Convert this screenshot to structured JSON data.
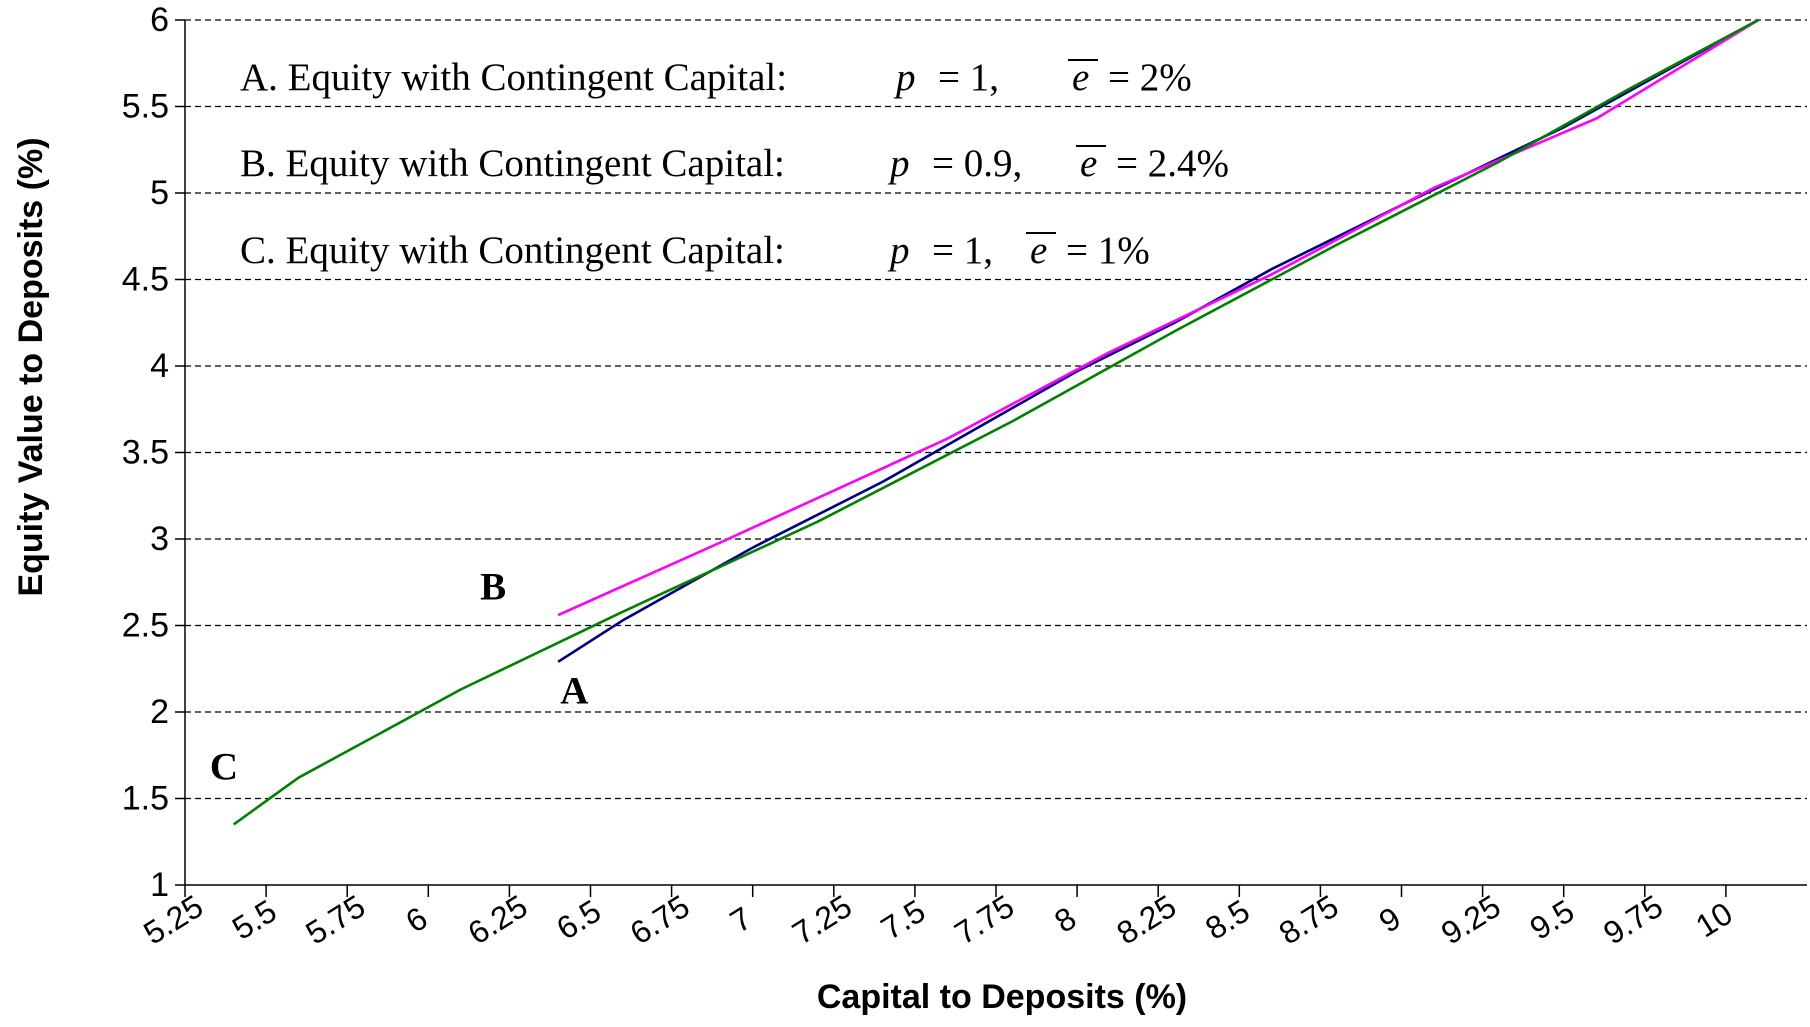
{
  "chart_data": {
    "type": "line",
    "xlabel": "Capital to Deposits (%)",
    "ylabel": "Equity Value to Deposits (%)",
    "xlim": [
      5.25,
      10.25
    ],
    "ylim": [
      1,
      6
    ],
    "x_ticks": [
      "5.25",
      "5.5",
      "5.75",
      "6",
      "6.25",
      "6.5",
      "6.75",
      "7",
      "7.25",
      "7.5",
      "7.75",
      "8",
      "8.25",
      "8.5",
      "8.75",
      "9",
      "9.25",
      "9.5",
      "9.75",
      "10"
    ],
    "y_ticks": [
      "1",
      "1.5",
      "2",
      "2.5",
      "3",
      "3.5",
      "4",
      "4.5",
      "5",
      "5.5",
      "6"
    ],
    "grid": "horizontal dashed",
    "legend_text": [
      {
        "id": "A",
        "prefix": "A. Equity with Contingent Capital:",
        "p_symbol": "p",
        "p_value": "= 1,",
        "e_symbol": "e",
        "e_value": "= 2%"
      },
      {
        "id": "B",
        "prefix": "B. Equity with Contingent Capital:",
        "p_symbol": "p",
        "p_value": "= 0.9,",
        "e_symbol": "e",
        "e_value": "= 2.4%"
      },
      {
        "id": "C",
        "prefix": "C. Equity with Contingent Capital:",
        "p_symbol": "p",
        "p_value": "= 1,",
        "e_symbol": "e",
        "e_value": "= 1%"
      }
    ],
    "series": [
      {
        "name": "A",
        "color": "#000080",
        "points": [
          [
            6.4,
            2.29
          ],
          [
            6.6,
            2.53
          ],
          [
            7.0,
            2.95
          ],
          [
            7.4,
            3.33
          ],
          [
            8.0,
            3.97
          ],
          [
            8.3,
            4.25
          ],
          [
            8.6,
            4.56
          ],
          [
            9.0,
            4.93
          ],
          [
            9.5,
            5.38
          ],
          [
            10.1,
            6.0
          ]
        ]
      },
      {
        "name": "B",
        "color": "#ff00ff",
        "points": [
          [
            6.4,
            2.56
          ],
          [
            6.9,
            2.98
          ],
          [
            7.6,
            3.58
          ],
          [
            8.1,
            4.08
          ],
          [
            8.6,
            4.53
          ],
          [
            9.1,
            5.03
          ],
          [
            9.6,
            5.43
          ],
          [
            10.1,
            6.0
          ]
        ]
      },
      {
        "name": "C",
        "color": "#008000",
        "points": [
          [
            5.4,
            1.35
          ],
          [
            5.6,
            1.62
          ],
          [
            6.1,
            2.13
          ],
          [
            6.6,
            2.58
          ],
          [
            7.2,
            3.1
          ],
          [
            7.8,
            3.68
          ],
          [
            8.3,
            4.2
          ],
          [
            8.8,
            4.7
          ],
          [
            9.3,
            5.18
          ],
          [
            9.7,
            5.6
          ],
          [
            10.1,
            6.0
          ]
        ]
      }
    ],
    "series_labels": [
      {
        "text": "A",
        "x": 6.45,
        "y": 2.05
      },
      {
        "text": "B",
        "x": 6.2,
        "y": 2.65
      },
      {
        "text": "C",
        "x": 5.37,
        "y": 1.61
      }
    ]
  }
}
